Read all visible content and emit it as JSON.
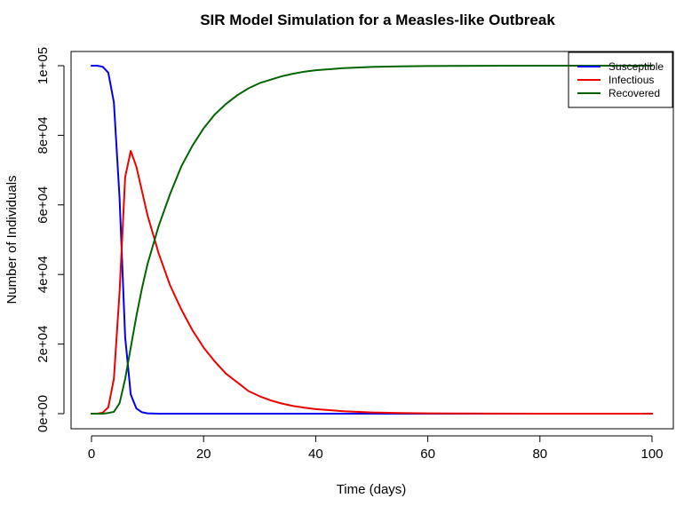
{
  "chart_data": {
    "type": "line",
    "title": "SIR Model Simulation for a Measles-like Outbreak",
    "xlabel": "Time (days)",
    "ylabel": "Number of Individuals",
    "xlim": [
      0,
      100
    ],
    "ylim": [
      0,
      100000
    ],
    "x_ticks": [
      0,
      20,
      40,
      60,
      80,
      100
    ],
    "x_tick_labels": [
      "0",
      "20",
      "40",
      "60",
      "80",
      "100"
    ],
    "y_ticks": [
      0,
      20000,
      40000,
      60000,
      80000,
      100000
    ],
    "y_tick_labels": [
      "0e+00",
      "2e+04",
      "4e+04",
      "6e+04",
      "8e+04",
      "1e+05"
    ],
    "grid": false,
    "legend_position": "top-right",
    "series": [
      {
        "name": "Susceptible",
        "color": "#0000ee",
        "points": [
          [
            0,
            100000
          ],
          [
            1,
            100000
          ],
          [
            2,
            99700
          ],
          [
            3,
            98000
          ],
          [
            4,
            89500
          ],
          [
            5,
            62000
          ],
          [
            6,
            22000
          ],
          [
            7,
            5500
          ],
          [
            8,
            1500
          ],
          [
            9,
            400
          ],
          [
            10,
            100
          ],
          [
            12,
            0
          ],
          [
            20,
            0
          ],
          [
            40,
            0
          ],
          [
            60,
            0
          ],
          [
            80,
            0
          ],
          [
            100,
            0
          ]
        ]
      },
      {
        "name": "Infectious",
        "color": "#ee0000",
        "points": [
          [
            0,
            0
          ],
          [
            1,
            0
          ],
          [
            2,
            300
          ],
          [
            3,
            1800
          ],
          [
            4,
            10000
          ],
          [
            5,
            35000
          ],
          [
            6,
            68000
          ],
          [
            7,
            75500
          ],
          [
            8,
            71000
          ],
          [
            9,
            64000
          ],
          [
            10,
            57000
          ],
          [
            12,
            46000
          ],
          [
            14,
            37000
          ],
          [
            16,
            30000
          ],
          [
            18,
            24000
          ],
          [
            20,
            19000
          ],
          [
            22,
            15000
          ],
          [
            24,
            11500
          ],
          [
            26,
            9000
          ],
          [
            28,
            6500
          ],
          [
            30,
            5000
          ],
          [
            32,
            3800
          ],
          [
            34,
            2900
          ],
          [
            36,
            2200
          ],
          [
            38,
            1700
          ],
          [
            40,
            1300
          ],
          [
            45,
            700
          ],
          [
            50,
            350
          ],
          [
            55,
            180
          ],
          [
            60,
            90
          ],
          [
            70,
            30
          ],
          [
            80,
            10
          ],
          [
            90,
            4
          ],
          [
            100,
            0
          ]
        ]
      },
      {
        "name": "Recovered",
        "color": "#006400",
        "points": [
          [
            0,
            0
          ],
          [
            1,
            0
          ],
          [
            2,
            0
          ],
          [
            3,
            200
          ],
          [
            4,
            500
          ],
          [
            5,
            3000
          ],
          [
            6,
            10000
          ],
          [
            7,
            19000
          ],
          [
            8,
            28000
          ],
          [
            9,
            36000
          ],
          [
            10,
            43000
          ],
          [
            12,
            54000
          ],
          [
            14,
            63000
          ],
          [
            16,
            71000
          ],
          [
            18,
            77000
          ],
          [
            20,
            82000
          ],
          [
            22,
            86000
          ],
          [
            24,
            89000
          ],
          [
            26,
            91500
          ],
          [
            28,
            93500
          ],
          [
            30,
            95000
          ],
          [
            32,
            96000
          ],
          [
            34,
            97000
          ],
          [
            36,
            97700
          ],
          [
            38,
            98300
          ],
          [
            40,
            98700
          ],
          [
            45,
            99300
          ],
          [
            50,
            99650
          ],
          [
            55,
            99820
          ],
          [
            60,
            99910
          ],
          [
            70,
            99970
          ],
          [
            80,
            99990
          ],
          [
            90,
            100000
          ],
          [
            100,
            100000
          ]
        ]
      }
    ]
  }
}
